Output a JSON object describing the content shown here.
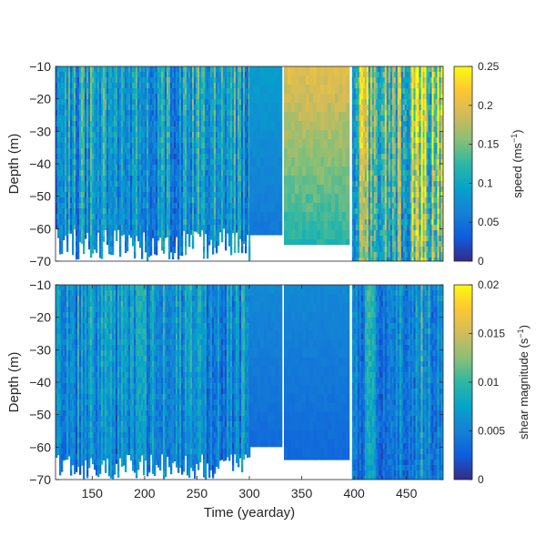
{
  "chart_data": [
    {
      "type": "heatmap",
      "panel": "top",
      "ylabel": "Depth (m)",
      "xlim": [
        115,
        485
      ],
      "ylim": [
        -70,
        -10
      ],
      "yticks": [
        -10,
        -20,
        -30,
        -40,
        -50,
        -60,
        -70
      ],
      "colorbar": {
        "label": "speed (ms",
        "label_sup": "−1",
        "label_end": ")",
        "range": [
          0,
          0.25
        ],
        "ticks": [
          0,
          0.05,
          0.1,
          0.15,
          0.2,
          0.25
        ],
        "tick_labels": [
          "0",
          "0.05",
          "0.1",
          "0.15",
          "0.2",
          "0.25"
        ]
      },
      "colormap": "parula",
      "segments": [
        {
          "x": [
            115,
            300
          ],
          "pattern": "stripes",
          "mean": 0.09,
          "bottom_depth": -60
        },
        {
          "x": [
            300,
            330
          ],
          "pattern": "smooth",
          "mean": 0.08,
          "bottom_depth": -62
        },
        {
          "x": [
            333,
            395
          ],
          "pattern": "smooth",
          "mean": 0.18,
          "bottom_depth": -65
        },
        {
          "x": [
            398,
            455
          ],
          "pattern": "stripes",
          "mean": 0.14,
          "bottom_depth": -70
        },
        {
          "x": [
            455,
            485
          ],
          "pattern": "stripes",
          "mean": 0.2,
          "bottom_depth": -70
        }
      ]
    },
    {
      "type": "heatmap",
      "panel": "bottom",
      "xlabel": "Time (yearday)",
      "ylabel": "Depth (m)",
      "xlim": [
        115,
        485
      ],
      "ylim": [
        -70,
        -10
      ],
      "xticks": [
        150,
        200,
        250,
        300,
        350,
        400,
        450
      ],
      "yticks": [
        -10,
        -20,
        -30,
        -40,
        -50,
        -60,
        -70
      ],
      "colorbar": {
        "label": "shear magnitude (s",
        "label_sup": "−1",
        "label_end": ")",
        "range": [
          0,
          0.02
        ],
        "ticks": [
          0,
          0.005,
          0.01,
          0.015,
          0.02
        ],
        "tick_labels": [
          "0",
          "0.005",
          "0.01",
          "0.015",
          "0.02"
        ]
      },
      "colormap": "parula",
      "segments": [
        {
          "x": [
            115,
            300
          ],
          "pattern": "stripes",
          "mean": 0.006,
          "bottom_depth": -62
        },
        {
          "x": [
            300,
            330
          ],
          "pattern": "smooth",
          "mean": 0.005,
          "bottom_depth": -60
        },
        {
          "x": [
            333,
            395
          ],
          "pattern": "smooth",
          "mean": 0.005,
          "bottom_depth": -64
        },
        {
          "x": [
            398,
            455
          ],
          "pattern": "stripes",
          "mean": 0.006,
          "bottom_depth": -70
        },
        {
          "x": [
            455,
            485
          ],
          "pattern": "stripes",
          "mean": 0.007,
          "bottom_depth": -70
        }
      ]
    }
  ]
}
